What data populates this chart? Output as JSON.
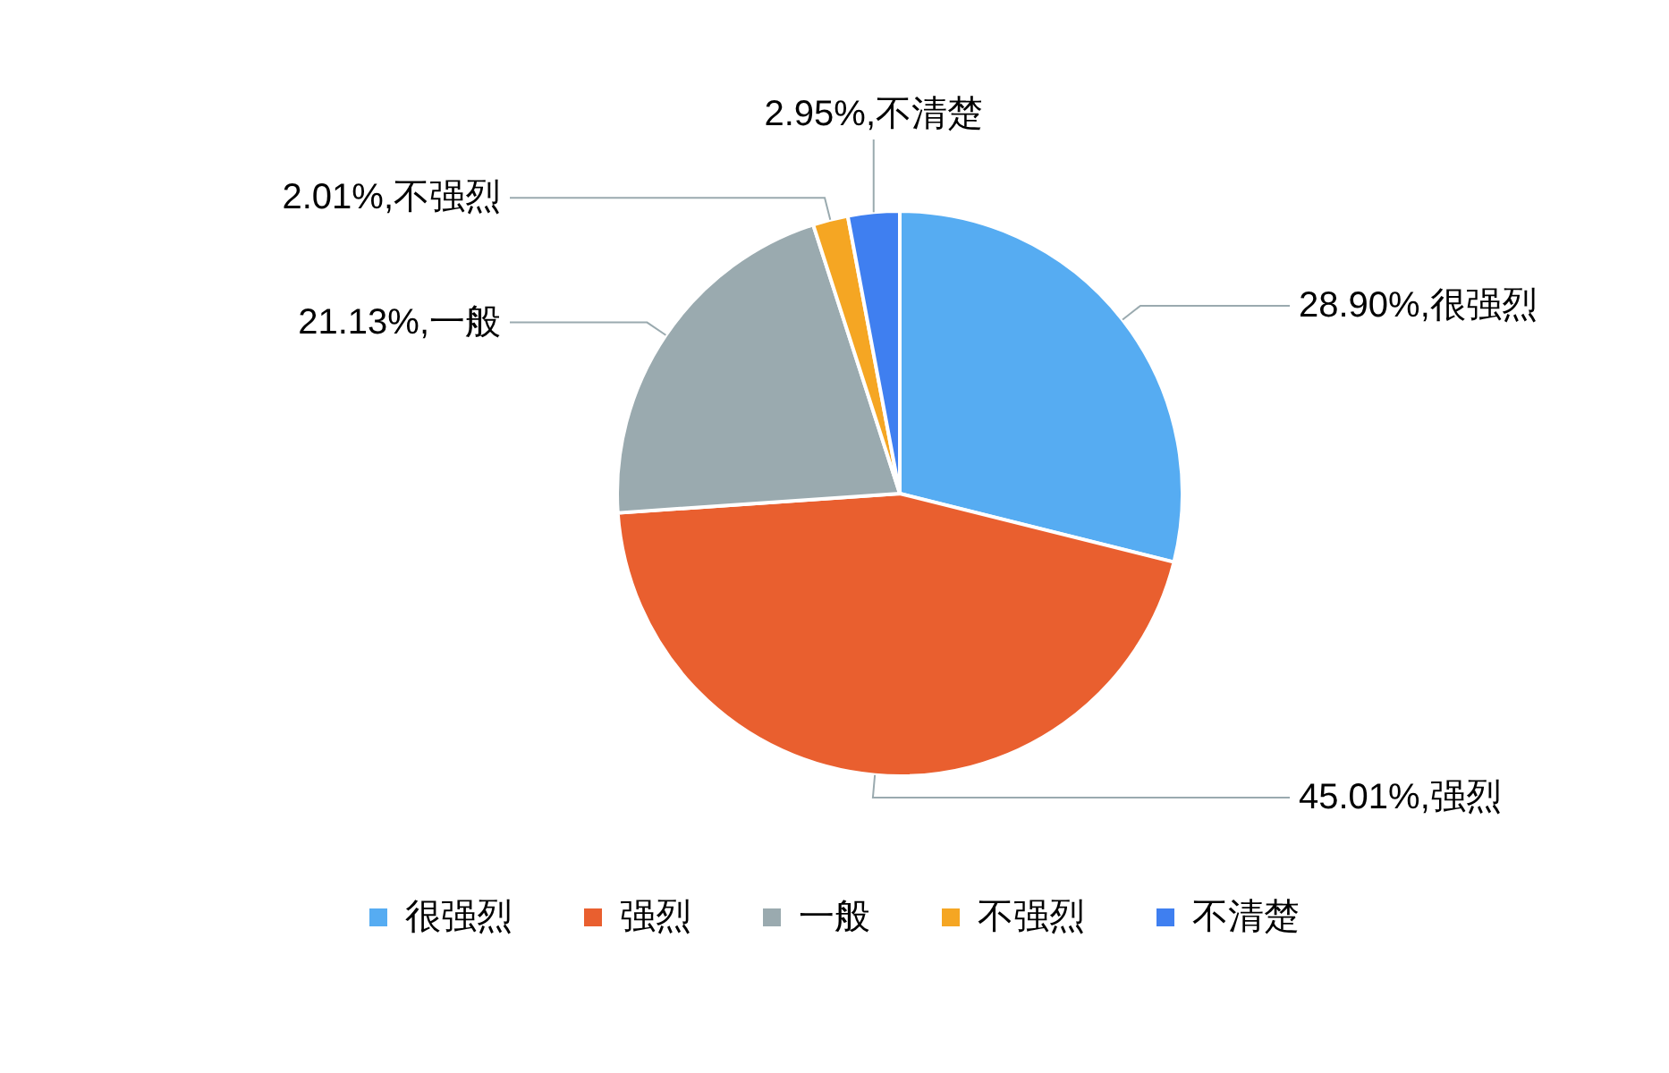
{
  "chart_data": {
    "type": "pie",
    "categories": [
      "很强烈",
      "强烈",
      "一般",
      "不强烈",
      "不清楚"
    ],
    "values": [
      28.9,
      45.01,
      21.13,
      2.01,
      2.95
    ],
    "value_labels": [
      "28.90%,",
      "45.01%,",
      "21.13%,",
      "2.01%,",
      "2.95%,"
    ],
    "colors": [
      "#56acf2",
      "#e95f2f",
      "#9aaaaf",
      "#f5a623",
      "#3f7ff0"
    ],
    "legend": "bottom"
  }
}
